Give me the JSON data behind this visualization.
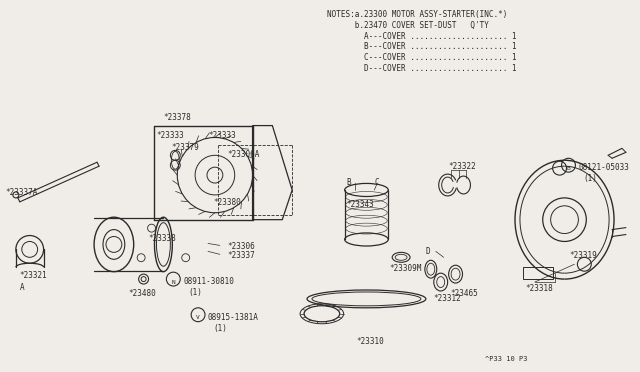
{
  "bg_color": "#f0ede8",
  "line_color": "#2a2a2a",
  "notes_lines": [
    "NOTES:a.23300 MOTOR ASSY-STARTER(INC.*)",
    "      b.23470 COVER SET-DUST   Q'TY",
    "        A---COVER ..................... 1",
    "        B---COVER ..................... 1",
    "        C---COVER ..................... 1",
    "        D---COVER ..................... 1"
  ],
  "footer": "^P33 10 P3",
  "fig_w": 6.4,
  "fig_h": 3.72,
  "dpi": 100
}
